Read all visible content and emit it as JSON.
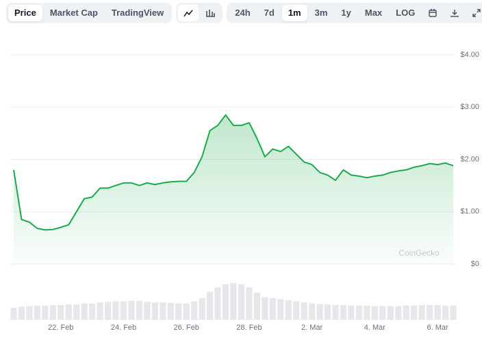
{
  "toolbar": {
    "views": [
      "Price",
      "Market Cap",
      "TradingView"
    ],
    "ranges": [
      "24h",
      "7d",
      "1m",
      "3m",
      "1y",
      "Max",
      "LOG"
    ],
    "active_view": "Price",
    "active_range": "1m"
  },
  "watermark": "CoinGecko",
  "chart_data": {
    "type": "line",
    "categories": [
      null,
      null,
      null,
      null,
      null,
      null,
      "22. Feb",
      null,
      null,
      null,
      null,
      null,
      null,
      null,
      "24. Feb",
      null,
      null,
      null,
      null,
      null,
      null,
      null,
      "26. Feb",
      null,
      null,
      null,
      null,
      null,
      null,
      null,
      "28. Feb",
      null,
      null,
      null,
      null,
      null,
      null,
      null,
      "2. Mar",
      null,
      null,
      null,
      null,
      null,
      null,
      null,
      "4. Mar",
      null,
      null,
      null,
      null,
      null,
      null,
      null,
      "6. Mar",
      null,
      null
    ],
    "series": [
      {
        "name": "Price",
        "color": "#1ba94c",
        "values": [
          1.8,
          0.85,
          0.8,
          0.68,
          0.65,
          0.66,
          0.7,
          0.75,
          1.0,
          1.25,
          1.28,
          1.45,
          1.45,
          1.5,
          1.55,
          1.55,
          1.5,
          1.55,
          1.52,
          1.55,
          1.57,
          1.58,
          1.58,
          1.75,
          2.05,
          2.55,
          2.65,
          2.85,
          2.65,
          2.65,
          2.7,
          2.4,
          2.05,
          2.2,
          2.15,
          2.25,
          2.1,
          1.95,
          1.9,
          1.75,
          1.7,
          1.6,
          1.8,
          1.7,
          1.68,
          1.65,
          1.68,
          1.7,
          1.75,
          1.78,
          1.8,
          1.85,
          1.88,
          1.92,
          1.9,
          1.93,
          1.88
        ]
      }
    ],
    "ylim": [
      0,
      4
    ],
    "yticks": [
      {
        "value": 0,
        "label": "$0"
      },
      {
        "value": 1,
        "label": "$1.00"
      },
      {
        "value": 2,
        "label": "$2.00"
      },
      {
        "value": 3,
        "label": "$3.00"
      },
      {
        "value": 4,
        "label": "$4.00"
      }
    ],
    "grid": true,
    "volume": {
      "color": "#e5e7eb",
      "ylim": [
        0,
        100
      ],
      "values": [
        22,
        24,
        25,
        26,
        26,
        27,
        27,
        28,
        28,
        30,
        30,
        32,
        33,
        34,
        34,
        35,
        35,
        33,
        32,
        32,
        31,
        30,
        30,
        34,
        40,
        52,
        60,
        66,
        68,
        66,
        60,
        50,
        42,
        40,
        38,
        36,
        34,
        32,
        30,
        29,
        28,
        27,
        27,
        26,
        26,
        26,
        25,
        25,
        25,
        25,
        26,
        26,
        27,
        27,
        27,
        26,
        26
      ]
    }
  }
}
